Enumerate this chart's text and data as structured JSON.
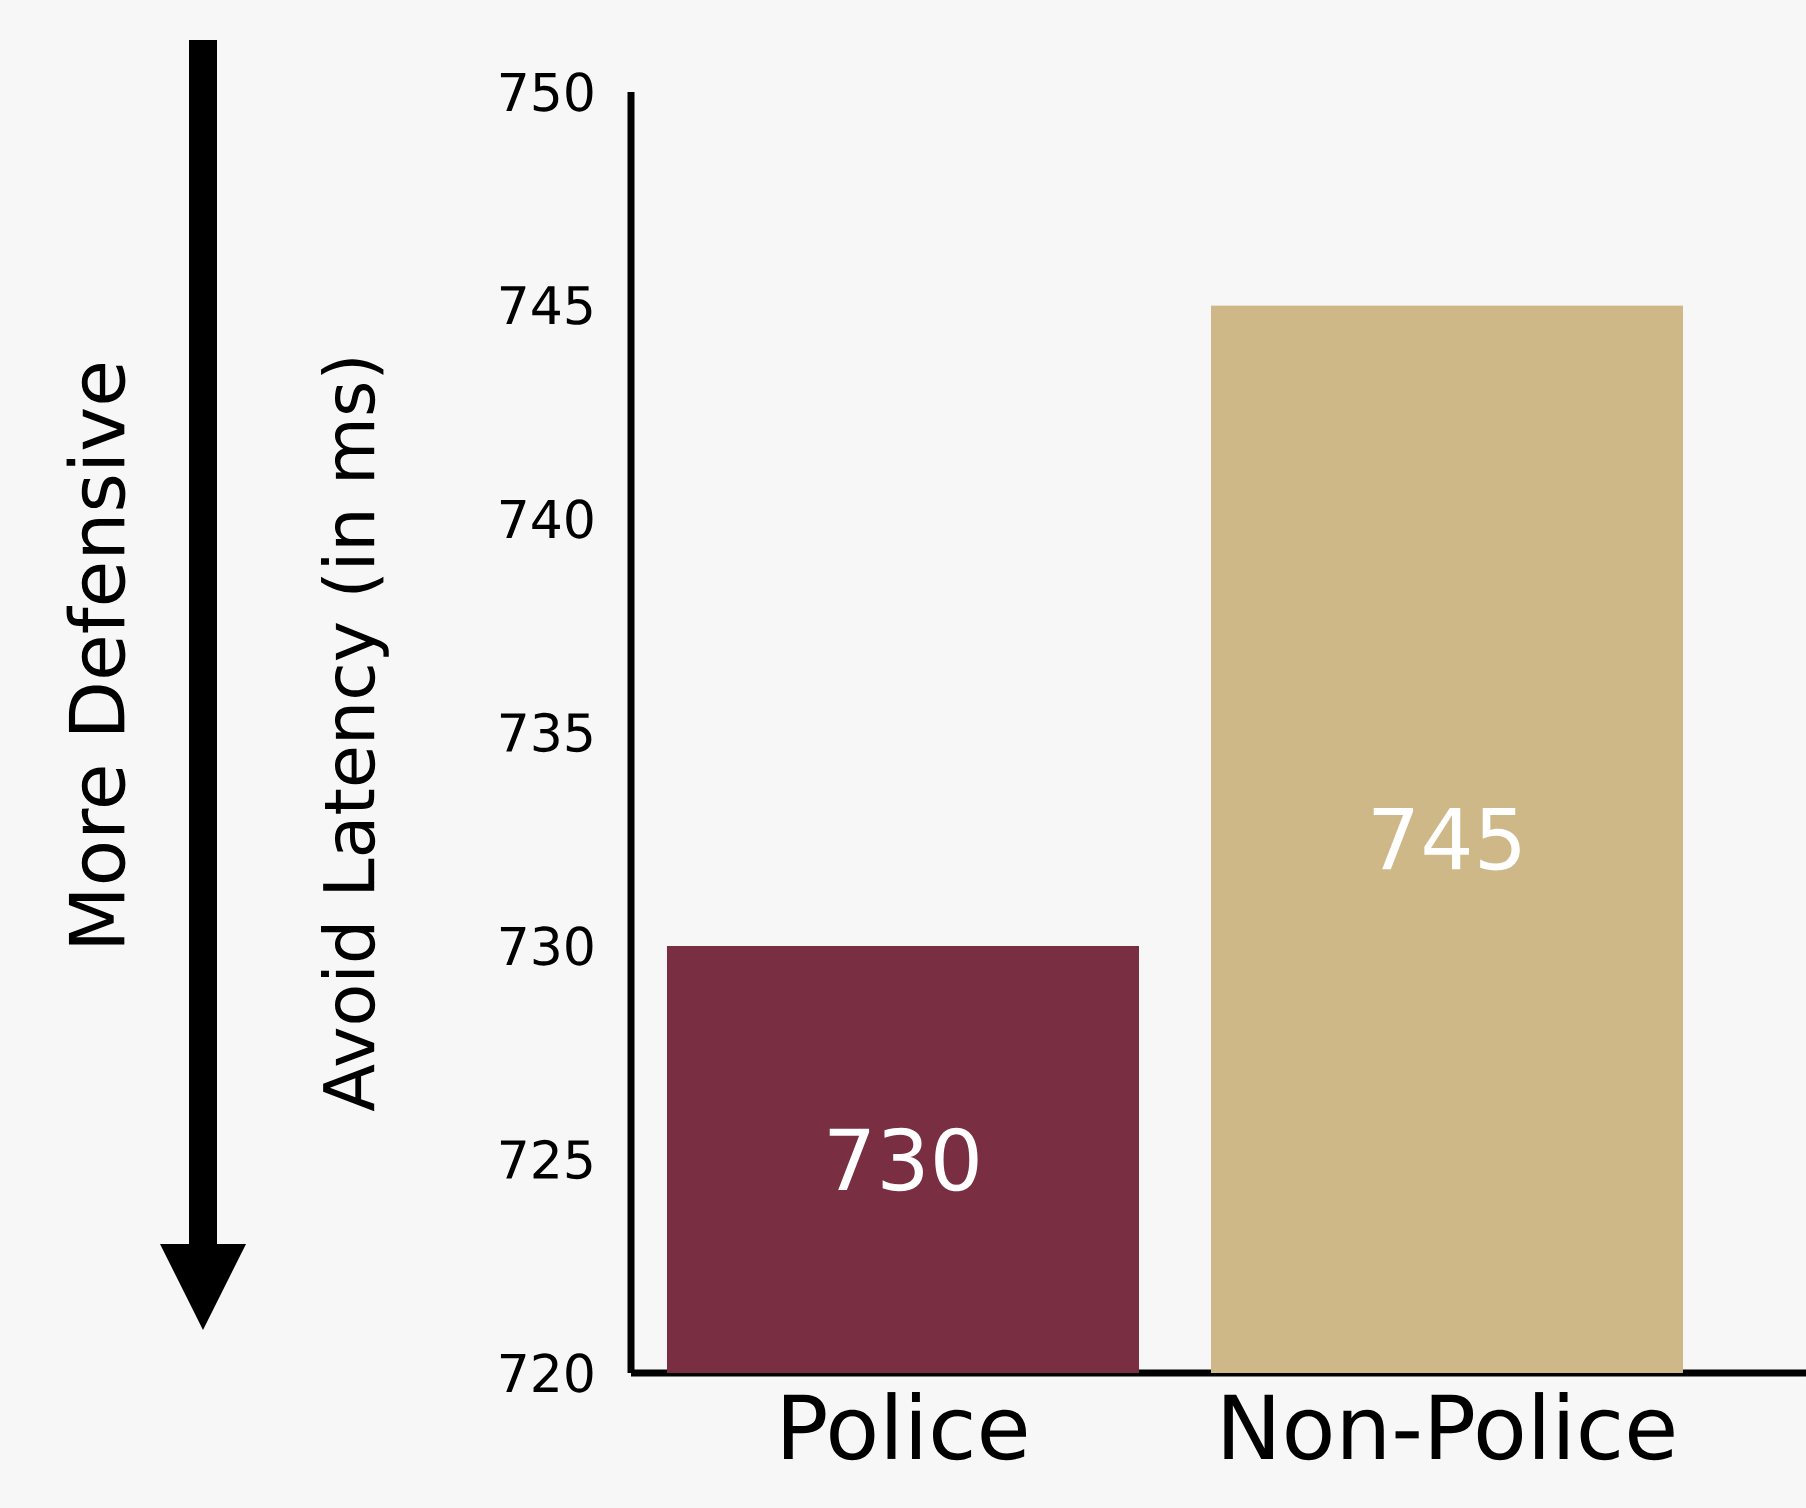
{
  "chart_data": {
    "type": "bar",
    "ylabel": "Avoid Latency (in ms)",
    "categories": [
      "Police",
      "Non-Police"
    ],
    "values": [
      730,
      745
    ],
    "colors": [
      "#7a2e41",
      "#cfb887"
    ],
    "ylim": [
      720,
      750
    ],
    "yticks": [
      720,
      725,
      730,
      735,
      740,
      745,
      750
    ],
    "data_labels": true,
    "grid": false,
    "annotations": [
      "More Defensive"
    ]
  }
}
